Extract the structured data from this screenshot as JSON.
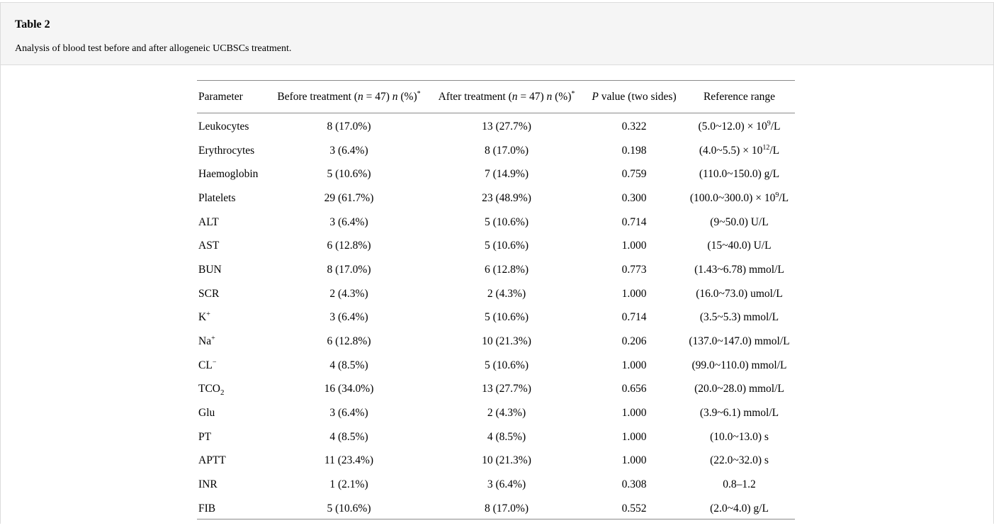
{
  "header": {
    "title": "Table 2",
    "caption": "Analysis of blood test before and after allogeneic UCBSCs treatment."
  },
  "table": {
    "columns": [
      {
        "id": "parameter",
        "label_html": "Parameter"
      },
      {
        "id": "before",
        "label_html": "Before treatment (<i>n</i> = 47) <i>n</i> (%)<sup>*</sup>"
      },
      {
        "id": "after",
        "label_html": "After treatment (<i>n</i> = 47) <i>n</i> (%)<sup>*</sup>"
      },
      {
        "id": "pvalue",
        "label_html": "<i>P</i> value (two sides)"
      },
      {
        "id": "reference",
        "label_html": "Reference range"
      }
    ],
    "rows": [
      [
        "Leukocytes",
        "8 (17.0%)",
        "13 (27.7%)",
        "0.322",
        "(5.0~12.0) × 10<sup>9</sup>/L"
      ],
      [
        "Erythrocytes",
        "3 (6.4%)",
        "8 (17.0%)",
        "0.198",
        "(4.0~5.5) × 10<sup>12</sup>/L"
      ],
      [
        "Haemoglobin",
        "5 (10.6%)",
        "7 (14.9%)",
        "0.759",
        "(110.0~150.0) g/L"
      ],
      [
        "Platelets",
        "29 (61.7%)",
        "23 (48.9%)",
        "0.300",
        "(100.0~300.0) × 10<sup>9</sup>/L"
      ],
      [
        "ALT",
        "3 (6.4%)",
        "5 (10.6%)",
        "0.714",
        "(9~50.0) U/L"
      ],
      [
        "AST",
        "6 (12.8%)",
        "5 (10.6%)",
        "1.000",
        "(15~40.0) U/L"
      ],
      [
        "BUN",
        "8 (17.0%)",
        "6 (12.8%)",
        "0.773",
        "(1.43~6.78) mmol/L"
      ],
      [
        "SCR",
        "2 (4.3%)",
        "2 (4.3%)",
        "1.000",
        "(16.0~73.0) umol/L"
      ],
      [
        "K<sup>+</sup>",
        "3 (6.4%)",
        "5 (10.6%)",
        "0.714",
        "(3.5~5.3) mmol/L"
      ],
      [
        "Na<sup>+</sup>",
        "6 (12.8%)",
        "10 (21.3%)",
        "0.206",
        "(137.0~147.0) mmol/L"
      ],
      [
        "CL<sup>−</sup>",
        "4 (8.5%)",
        "5 (10.6%)",
        "1.000",
        "(99.0~110.0) mmol/L"
      ],
      [
        "TCO<sub>2</sub>",
        "16 (34.0%)",
        "13 (27.7%)",
        "0.656",
        "(20.0~28.0) mmol/L"
      ],
      [
        "Glu",
        "3 (6.4%)",
        "2 (4.3%)",
        "1.000",
        "(3.9~6.1) mmol/L"
      ],
      [
        "PT",
        "4 (8.5%)",
        "4 (8.5%)",
        "1.000",
        "(10.0~13.0) s"
      ],
      [
        "APTT",
        "11 (23.4%)",
        "10 (21.3%)",
        "1.000",
        "(22.0~32.0) s"
      ],
      [
        "INR",
        "1 (2.1%)",
        "3 (6.4%)",
        "0.308",
        "0.8–1.2"
      ],
      [
        "FIB",
        "5 (10.6%)",
        "8 (17.0%)",
        "0.552",
        "(2.0~4.0) g/L"
      ]
    ]
  },
  "colors": {
    "caption_band_background": "#f5f5f5",
    "panel_border": "#dcdcdc",
    "table_rule": "#8a8a8a",
    "text": "#000000"
  }
}
